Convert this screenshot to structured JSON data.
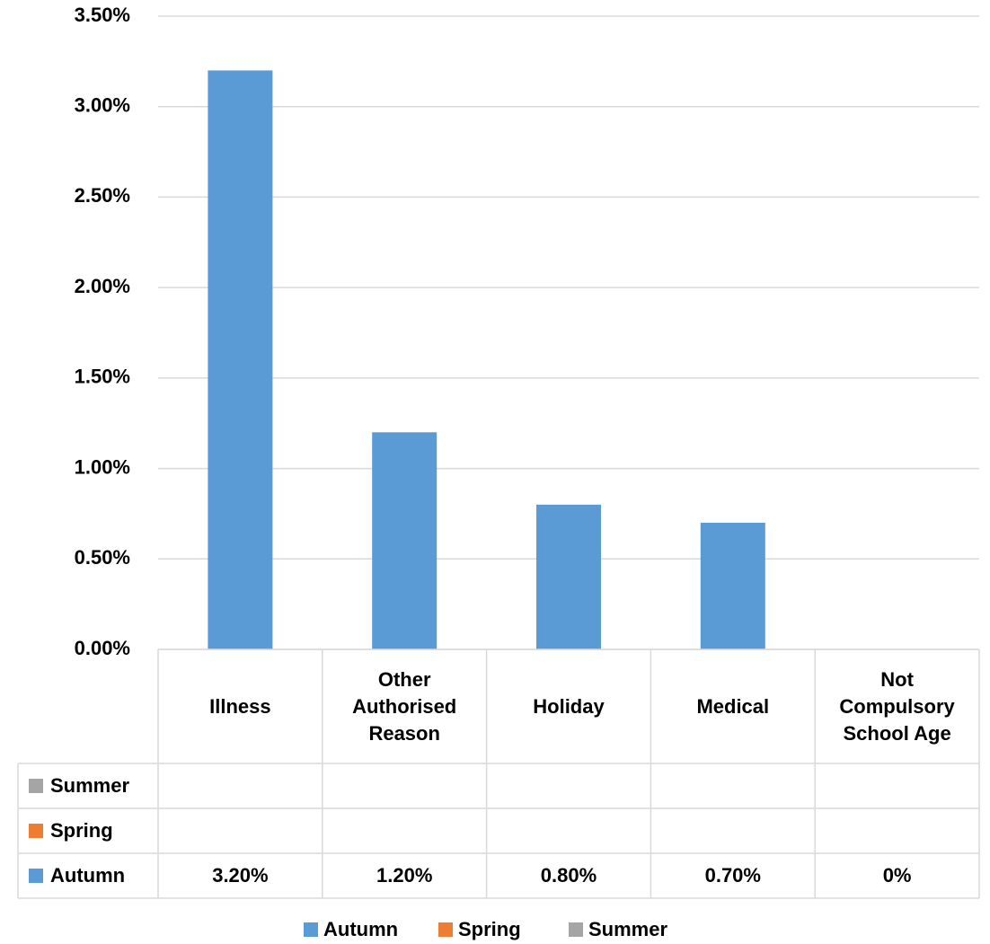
{
  "chart_data": {
    "type": "bar",
    "categories": [
      "Illness",
      "Other Authorised Reason",
      "Holiday",
      "Medical",
      "Not Compulsory School Age"
    ],
    "series": [
      {
        "name": "Autumn",
        "color": "#5b9bd5",
        "values": [
          3.2,
          1.2,
          0.8,
          0.7,
          0
        ],
        "value_labels": [
          "3.20%",
          "1.20%",
          "0.80%",
          "0.70%",
          "0%"
        ]
      },
      {
        "name": "Spring",
        "color": "#ed7d31",
        "values": [
          null,
          null,
          null,
          null,
          null
        ]
      },
      {
        "name": "Summer",
        "color": "#a5a5a5",
        "values": [
          null,
          null,
          null,
          null,
          null
        ]
      }
    ],
    "ylim": [
      0,
      3.5
    ],
    "yticks": [
      {
        "value": 0,
        "label": "0.00%"
      },
      {
        "value": 0.5,
        "label": "0.50%"
      },
      {
        "value": 1,
        "label": "1.00%"
      },
      {
        "value": 1.5,
        "label": "1.50%"
      },
      {
        "value": 2,
        "label": "2.00%"
      },
      {
        "value": 2.5,
        "label": "2.50%"
      },
      {
        "value": 3,
        "label": "3.00%"
      },
      {
        "value": 3.5,
        "label": "3.50%"
      }
    ],
    "grid": true,
    "legend": "bottom",
    "data_table": true
  }
}
